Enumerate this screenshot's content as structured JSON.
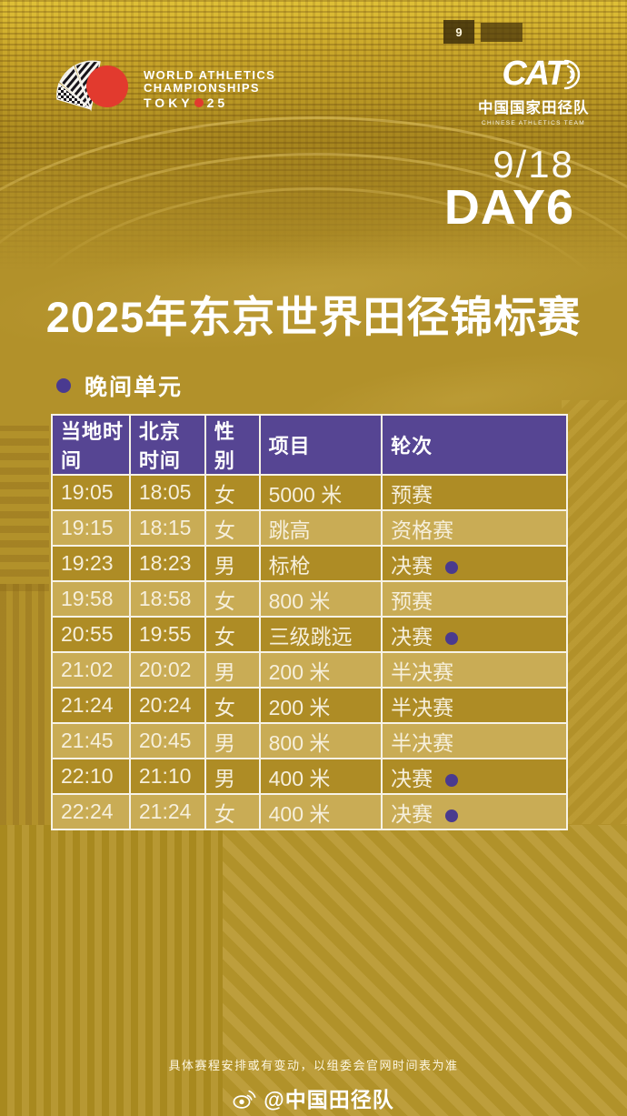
{
  "colors": {
    "background_gold": "#b2912a",
    "row_dark_gold": "#ae8c25",
    "row_light_gold": "#c9ac55",
    "header_purple": "#564593",
    "dot_purple": "#4a3a8e",
    "logo_red": "#e23a2e",
    "text_white": "#ffffff",
    "text_cream": "#f6efdb"
  },
  "header": {
    "wa_logo": {
      "line1": "WORLD ATHLETICS",
      "line2": "CHAMPIONSHIPS",
      "line3_left": "TOKY",
      "line3_right": "25"
    },
    "cat_logo": {
      "acronym": "CAT",
      "name_cn": "中国国家田径队",
      "name_en": "CHINESE ATHLETICS TEAM"
    },
    "scoreboard_number": "9",
    "date": "9/18",
    "day": "DAY6"
  },
  "title": "2025年东京世界田径锦标赛",
  "session": {
    "label": "晚间单元"
  },
  "schedule": {
    "columns": [
      "当地时间",
      "北京时间",
      "性别",
      "项目",
      "轮次"
    ],
    "rows": [
      {
        "local": "19:05",
        "beijing": "18:05",
        "gender": "女",
        "event": "5000 米",
        "round": "预赛",
        "final": false
      },
      {
        "local": "19:15",
        "beijing": "18:15",
        "gender": "女",
        "event": "跳高",
        "round": "资格赛",
        "final": false
      },
      {
        "local": "19:23",
        "beijing": "18:23",
        "gender": "男",
        "event": "标枪",
        "round": "决赛",
        "final": true
      },
      {
        "local": "19:58",
        "beijing": "18:58",
        "gender": "女",
        "event": "800 米",
        "round": "预赛",
        "final": false
      },
      {
        "local": "20:55",
        "beijing": "19:55",
        "gender": "女",
        "event": "三级跳远",
        "round": "决赛",
        "final": true
      },
      {
        "local": "21:02",
        "beijing": "20:02",
        "gender": "男",
        "event": "200 米",
        "round": "半决赛",
        "final": false
      },
      {
        "local": "21:24",
        "beijing": "20:24",
        "gender": "女",
        "event": "200 米",
        "round": "半决赛",
        "final": false
      },
      {
        "local": "21:45",
        "beijing": "20:45",
        "gender": "男",
        "event": "800 米",
        "round": "半决赛",
        "final": false
      },
      {
        "local": "22:10",
        "beijing": "21:10",
        "gender": "男",
        "event": "400 米",
        "round": "决赛",
        "final": true
      },
      {
        "local": "22:24",
        "beijing": "21:24",
        "gender": "女",
        "event": "400 米",
        "round": "决赛",
        "final": true
      }
    ]
  },
  "footer": {
    "note": "具体赛程安排或有变动，以组委会官网时间表为准",
    "handle": "@中国田径队"
  }
}
